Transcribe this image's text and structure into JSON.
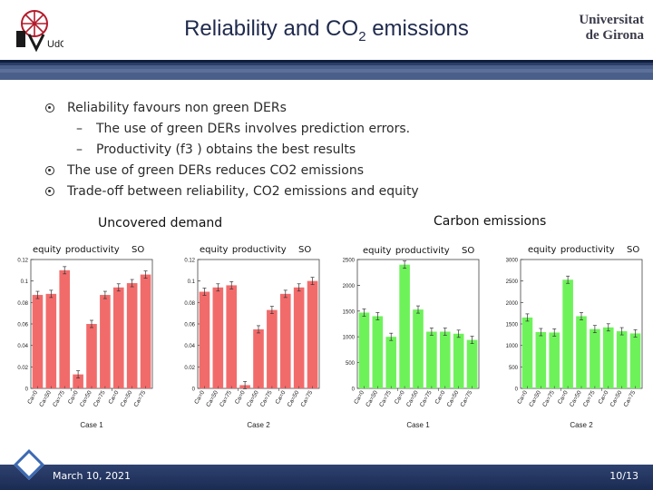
{
  "slide": {
    "title_main": "Reliability and CO",
    "title_sub": "2",
    "title_tail": " emissions",
    "university_line1": "Universitat",
    "university_line2": "de Girona",
    "logo_left_text": "UdG"
  },
  "bullets": [
    {
      "level": 1,
      "text": "Reliability favours non green DERs"
    },
    {
      "level": 2,
      "text": "The use of green DERs involves prediction errors."
    },
    {
      "level": 2,
      "text": "Productivity (f3 ) obtains the best results"
    },
    {
      "level": 1,
      "text": "The use of green DERs reduces CO2 emissions"
    },
    {
      "level": 1,
      "text": "Trade-off between reliability, CO2 emissions and equity"
    }
  ],
  "sections": {
    "uncovered": "Uncovered demand",
    "carbon": "Carbon emissions"
  },
  "panel_labels": [
    "equity",
    "productivity",
    "SO"
  ],
  "footer": {
    "date": "March 10, 2021",
    "page": "10/13"
  },
  "colors": {
    "red_bar": "#f26b6b",
    "green_bar": "#6ef25a",
    "navy": "#1f2a4d"
  },
  "chart_data": [
    {
      "type": "bar",
      "title": "",
      "xlabel": "Case 1",
      "ylabel": "",
      "categories": [
        "Ca=0",
        "Ca=50",
        "Ca=75",
        "Ca=0",
        "Ca=50",
        "Ca=75",
        "Ca=0",
        "Ca=50",
        "Ca=75"
      ],
      "values": [
        0.087,
        0.088,
        0.11,
        0.013,
        0.06,
        0.087,
        0.094,
        0.098,
        0.106
      ],
      "yticks": [
        "0",
        "0.02",
        "0.04",
        "0.06",
        "0.08",
        "0.1",
        "0.12"
      ],
      "ylim": [
        0,
        0.12
      ],
      "color": "#f26b6b"
    },
    {
      "type": "bar",
      "title": "",
      "xlabel": "Case 2",
      "ylabel": "",
      "categories": [
        "Ca=0",
        "Ca=50",
        "Ca=75",
        "Ca=0",
        "Ca=50",
        "Ca=75",
        "Ca=0",
        "Ca=50",
        "Ca=75"
      ],
      "values": [
        0.09,
        0.094,
        0.096,
        0.003,
        0.055,
        0.073,
        0.088,
        0.094,
        0.1
      ],
      "yticks": [
        "0",
        "0.02",
        "0.04",
        "0.06",
        "0.08",
        "0.1",
        "0.12"
      ],
      "ylim": [
        0,
        0.12
      ],
      "color": "#f26b6b"
    },
    {
      "type": "bar",
      "title": "",
      "xlabel": "Case 1",
      "ylabel": "",
      "categories": [
        "Ca=0",
        "Ca=50",
        "Ca=75",
        "Ca=0",
        "Ca=50",
        "Ca=75",
        "Ca=0",
        "Ca=50",
        "Ca=75"
      ],
      "values": [
        1470,
        1400,
        1000,
        2400,
        1530,
        1100,
        1100,
        1060,
        940
      ],
      "yticks": [
        "0",
        "500",
        "1000",
        "1500",
        "2000",
        "2500"
      ],
      "ylim": [
        0,
        2500
      ],
      "color": "#6ef25a"
    },
    {
      "type": "bar",
      "title": "",
      "xlabel": "Case 2",
      "ylabel": "",
      "categories": [
        "Ca=0",
        "Ca=50",
        "Ca=75",
        "Ca=0",
        "Ca=50",
        "Ca=75",
        "Ca=0",
        "Ca=50",
        "Ca=75"
      ],
      "values": [
        1650,
        1310,
        1300,
        2530,
        1680,
        1380,
        1420,
        1330,
        1280
      ],
      "yticks": [
        "0",
        "500",
        "1000",
        "1500",
        "2000",
        "2500",
        "3000"
      ],
      "ylim": [
        0,
        3000
      ],
      "color": "#6ef25a"
    }
  ]
}
